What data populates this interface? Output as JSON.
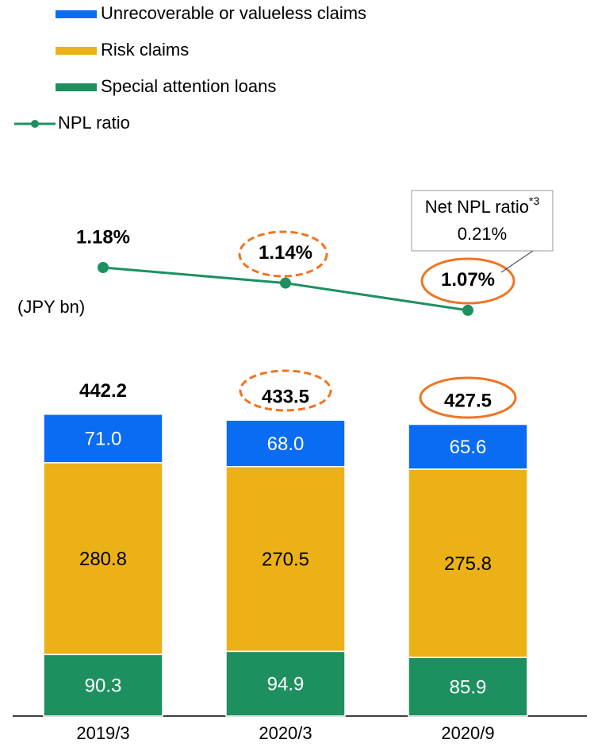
{
  "chart_data": {
    "type": "stacked-bar-line",
    "units_label": "(JPY bn)",
    "categories": [
      "2019/3",
      "2020/3",
      "2020/9"
    ],
    "series": [
      {
        "name": "Special attention loans",
        "color": "#1e9060",
        "values": [
          90.3,
          94.9,
          85.9
        ],
        "value_labels": [
          "90.3",
          "94.9",
          "85.9"
        ]
      },
      {
        "name": "Risk claims",
        "color": "#ebb116",
        "values": [
          280.8,
          270.5,
          275.8
        ],
        "value_labels": [
          "280.8",
          "270.5",
          "275.8"
        ]
      },
      {
        "name": "Unrecoverable or valueless claims",
        "color": "#0a6cf2",
        "values": [
          71.0,
          68.0,
          65.6
        ],
        "value_labels": [
          "71.0",
          "68.0",
          "65.6"
        ]
      }
    ],
    "totals": [
      442.2,
      433.5,
      427.5
    ],
    "total_labels": [
      "442.2",
      "433.5",
      "427.5"
    ],
    "line": {
      "name": "NPL ratio",
      "color": "#1e9060",
      "values": [
        1.18,
        1.14,
        1.07
      ],
      "value_labels": [
        "1.18%",
        "1.14%",
        "1.07%"
      ]
    },
    "annotation": {
      "text": "Net NPL ratio",
      "superscript": "*3",
      "value": "0.21%"
    }
  }
}
